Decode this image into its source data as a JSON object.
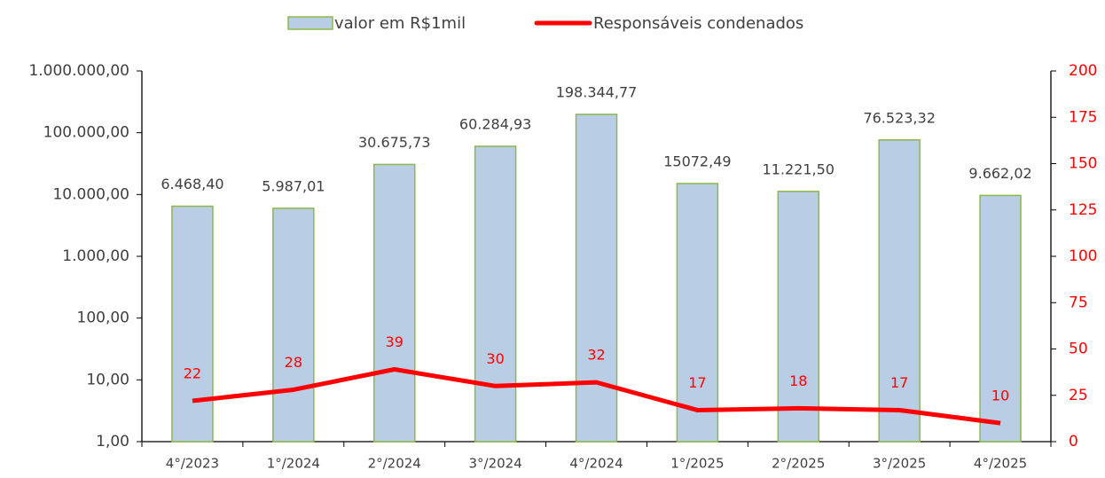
{
  "chart_data": {
    "type": "bar",
    "categories": [
      "4°/2023",
      "1°/2024",
      "2°/2024",
      "3°/2024",
      "4°/2024",
      "1°/2025",
      "2°/2025",
      "3°/2025",
      "4°/2025"
    ],
    "series": [
      {
        "name": "valor em R$1mil",
        "type": "bar",
        "color": "#b9cde4",
        "stroke": "#8db84a",
        "axis": "y",
        "values": [
          6468.4,
          5987.01,
          30675.73,
          60284.93,
          198344.77,
          15072.49,
          11221.5,
          76523.32,
          9662.02
        ],
        "value_labels": [
          "6.468,40",
          "5.987,01",
          "30.675,73",
          "60.284,93",
          "198.344,77",
          "15072,49",
          "11.221,50",
          "76.523,32",
          "9.662,02"
        ]
      },
      {
        "name": "Responsáveis condenados",
        "type": "line",
        "color": "#ff0000",
        "axis": "y2",
        "values": [
          22,
          28,
          39,
          30,
          32,
          17,
          18,
          17,
          10
        ]
      }
    ],
    "ylim": [
      1,
      1000000
    ],
    "ylog": true,
    "yticks": [
      {
        "value": 1,
        "label": "1,00"
      },
      {
        "value": 10,
        "label": "10,00"
      },
      {
        "value": 100,
        "label": "100,00"
      },
      {
        "value": 1000,
        "label": "1.000,00"
      },
      {
        "value": 10000,
        "label": "10.000,00"
      },
      {
        "value": 100000,
        "label": "100.000,00"
      },
      {
        "value": 1000000,
        "label": "1.000.000,00"
      }
    ],
    "y2lim": [
      0,
      200
    ],
    "y2ticks": [
      0,
      25,
      50,
      75,
      100,
      125,
      150,
      175,
      200
    ],
    "legend": "top"
  }
}
